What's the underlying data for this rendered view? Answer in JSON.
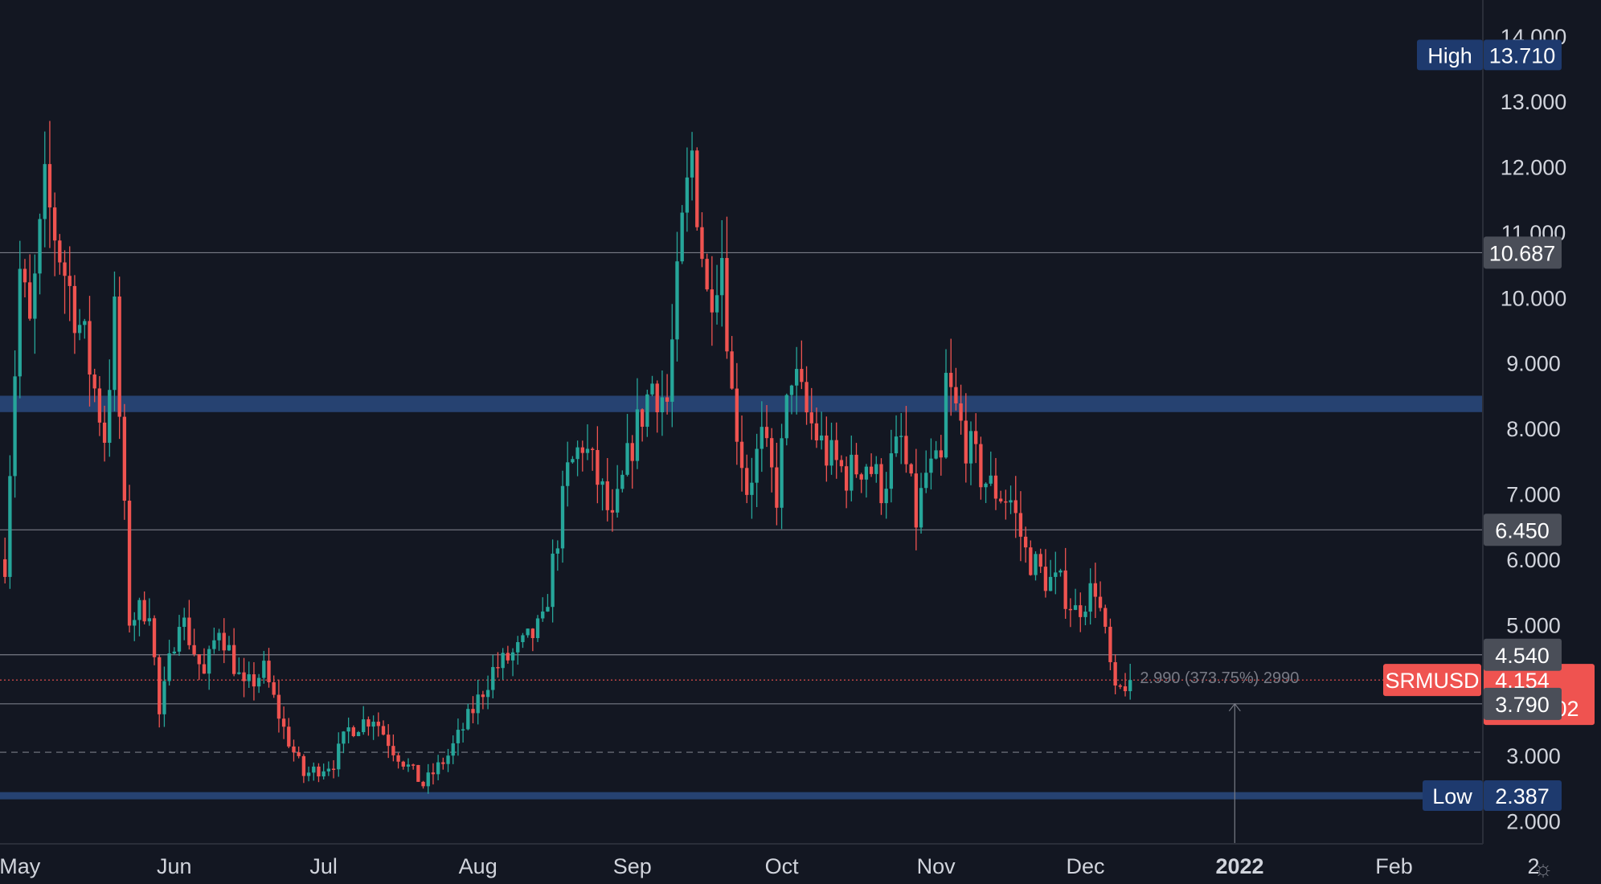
{
  "colors": {
    "background": "#131722",
    "up": "#26a69a",
    "down": "#ef5350",
    "zone": "#2a4a7f",
    "line": "#787b86",
    "current_tag": "#ef5350",
    "level_tag": "#4a4e58",
    "highlow_tag": "#1e3a6e"
  },
  "chart_data": {
    "type": "candlestick",
    "symbol": "SRMUSD",
    "interval": "1D",
    "x_range": [
      "2021-04-27",
      "2022-03-01"
    ],
    "ylim": [
      1.65,
      14.55
    ],
    "price_ticks": [
      "2.000",
      "3.000",
      "4.000",
      "5.000",
      "6.000",
      "7.000",
      "8.000",
      "9.000",
      "10.000",
      "11.000",
      "12.000",
      "13.000",
      "14.000"
    ],
    "time_ticks": [
      {
        "date": "2021-05-01",
        "label": "May"
      },
      {
        "date": "2021-06-01",
        "label": "Jun"
      },
      {
        "date": "2021-07-01",
        "label": "Jul"
      },
      {
        "date": "2021-08-01",
        "label": "Aug"
      },
      {
        "date": "2021-09-01",
        "label": "Sep"
      },
      {
        "date": "2021-10-01",
        "label": "Oct"
      },
      {
        "date": "2021-11-01",
        "label": "Nov"
      },
      {
        "date": "2021-12-01",
        "label": "Dec"
      },
      {
        "date": "2022-01-01",
        "label": "2022",
        "bold": true
      },
      {
        "date": "2022-02-01",
        "label": "Feb"
      },
      {
        "date": "2022-03-01",
        "label": "2"
      }
    ],
    "key_points": [
      {
        "date": "2021-04-28",
        "price": 6.0
      },
      {
        "date": "2021-05-01",
        "price": 10.4
      },
      {
        "date": "2021-05-03",
        "price": 9.5
      },
      {
        "date": "2021-05-06",
        "price": 11.6
      },
      {
        "date": "2021-05-10",
        "price": 10.4
      },
      {
        "date": "2021-05-14",
        "price": 9.3
      },
      {
        "date": "2021-05-18",
        "price": 7.9
      },
      {
        "date": "2021-05-20",
        "price": 9.7
      },
      {
        "date": "2021-05-23",
        "price": 5.1
      },
      {
        "date": "2021-05-27",
        "price": 5.3
      },
      {
        "date": "2021-05-29",
        "price": 3.6
      },
      {
        "date": "2021-06-02",
        "price": 5.2
      },
      {
        "date": "2021-06-07",
        "price": 4.2
      },
      {
        "date": "2021-06-10",
        "price": 5.0
      },
      {
        "date": "2021-06-15",
        "price": 4.0
      },
      {
        "date": "2021-06-19",
        "price": 4.3
      },
      {
        "date": "2021-06-23",
        "price": 3.4
      },
      {
        "date": "2021-06-27",
        "price": 2.7
      },
      {
        "date": "2021-07-03",
        "price": 2.9
      },
      {
        "date": "2021-07-06",
        "price": 3.4
      },
      {
        "date": "2021-07-11",
        "price": 3.6
      },
      {
        "date": "2021-07-15",
        "price": 3.1
      },
      {
        "date": "2021-07-21",
        "price": 2.55
      },
      {
        "date": "2021-07-26",
        "price": 3.0
      },
      {
        "date": "2021-07-31",
        "price": 3.7
      },
      {
        "date": "2021-08-04",
        "price": 4.3
      },
      {
        "date": "2021-08-09",
        "price": 4.6
      },
      {
        "date": "2021-08-14",
        "price": 5.0
      },
      {
        "date": "2021-08-19",
        "price": 7.3
      },
      {
        "date": "2021-08-22",
        "price": 7.8
      },
      {
        "date": "2021-08-26",
        "price": 7.0
      },
      {
        "date": "2021-08-28",
        "price": 6.5
      },
      {
        "date": "2021-09-01",
        "price": 7.8
      },
      {
        "date": "2021-09-05",
        "price": 8.7
      },
      {
        "date": "2021-09-08",
        "price": 8.4
      },
      {
        "date": "2021-09-11",
        "price": 11.0
      },
      {
        "date": "2021-09-13",
        "price": 12.2
      },
      {
        "date": "2021-09-16",
        "price": 10.0
      },
      {
        "date": "2021-09-19",
        "price": 10.7
      },
      {
        "date": "2021-09-21",
        "price": 8.5
      },
      {
        "date": "2021-09-24",
        "price": 7.1
      },
      {
        "date": "2021-09-27",
        "price": 7.8
      },
      {
        "date": "2021-09-30",
        "price": 7.0
      },
      {
        "date": "2021-10-03",
        "price": 8.9
      },
      {
        "date": "2021-10-06",
        "price": 8.2
      },
      {
        "date": "2021-10-10",
        "price": 7.6
      },
      {
        "date": "2021-10-14",
        "price": 7.3
      },
      {
        "date": "2021-10-18",
        "price": 7.5
      },
      {
        "date": "2021-10-21",
        "price": 7.1
      },
      {
        "date": "2021-10-25",
        "price": 7.8
      },
      {
        "date": "2021-10-28",
        "price": 6.6
      },
      {
        "date": "2021-10-30",
        "price": 7.3
      },
      {
        "date": "2021-11-02",
        "price": 7.4
      },
      {
        "date": "2021-11-03",
        "price": 8.7
      },
      {
        "date": "2021-11-07",
        "price": 7.8
      },
      {
        "date": "2021-11-10",
        "price": 7.3
      },
      {
        "date": "2021-11-12",
        "price": 7.1
      },
      {
        "date": "2021-11-16",
        "price": 6.9
      },
      {
        "date": "2021-11-19",
        "price": 6.1
      },
      {
        "date": "2021-11-23",
        "price": 5.7
      },
      {
        "date": "2021-11-26",
        "price": 5.6
      },
      {
        "date": "2021-11-29",
        "price": 5.2
      },
      {
        "date": "2021-12-03",
        "price": 5.6
      },
      {
        "date": "2021-12-05",
        "price": 4.8
      },
      {
        "date": "2021-12-07",
        "price": 3.9
      },
      {
        "date": "2021-12-09",
        "price": 4.1
      },
      {
        "date": "2021-12-10",
        "price": 4.154
      }
    ],
    "zones": [
      {
        "from": 8.25,
        "to": 8.5
      },
      {
        "from": 2.33,
        "to": 2.44
      }
    ],
    "levels": [
      {
        "price": 10.687,
        "label": "10.687"
      },
      {
        "price": 6.45,
        "label": "6.450"
      },
      {
        "price": 4.54,
        "label": "4.540"
      },
      {
        "price": 3.79,
        "label": "3.790"
      }
    ],
    "dashed_level": 3.05,
    "current": {
      "symbol": "SRMUSD",
      "price": 4.154,
      "label": "4.154",
      "countdown": "11:11:02"
    },
    "high": {
      "label": "High",
      "value": "13.710",
      "price": 13.71
    },
    "low": {
      "label": "Low",
      "value": "2.387",
      "price": 2.387
    },
    "measure": {
      "text": "2.990 (373.75%) 2990",
      "date": "2021-12-31",
      "from_price": 1.65,
      "to_price": 3.79
    }
  },
  "footer": {
    "settings_icon": "☼"
  }
}
